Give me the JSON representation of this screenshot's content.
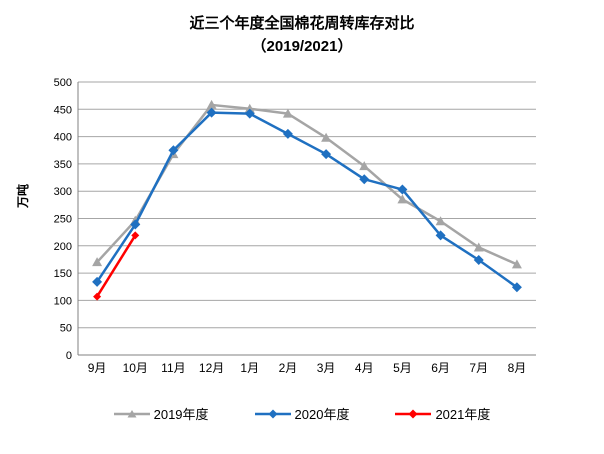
{
  "title": {
    "line1": "近三个年度全国棉花周转库存对比",
    "line2": "（2019/2021）"
  },
  "chart_data": {
    "type": "line",
    "title": "近三个年度全国棉花周转库存对比（2019/2021）",
    "ylabel": "万吨",
    "xlabel": "",
    "ylim": [
      0,
      500
    ],
    "ytick_step": 50,
    "grid": "horizontal",
    "legend_position": "bottom",
    "categories": [
      "9月",
      "10月",
      "11月",
      "12月",
      "1月",
      "2月",
      "3月",
      "4月",
      "5月",
      "6月",
      "7月",
      "8月"
    ],
    "series": [
      {
        "name": "2019年度",
        "color": "#A5A5A5",
        "marker": "triangle",
        "values": [
          170,
          246,
          368,
          458,
          451,
          442,
          398,
          346,
          285,
          245,
          197,
          166
        ]
      },
      {
        "name": "2020年度",
        "color": "#1F70C1",
        "marker": "diamond",
        "values": [
          134,
          239,
          375,
          444,
          442,
          405,
          368,
          322,
          303,
          219,
          174,
          124
        ]
      },
      {
        "name": "2021年度",
        "color": "#FF0000",
        "marker": "diamond",
        "values": [
          107,
          219
        ]
      }
    ]
  },
  "colors": {
    "gridline": "#A6A6A6",
    "axis": "#808080",
    "text": "#000000",
    "background": "#FFFFFF"
  }
}
